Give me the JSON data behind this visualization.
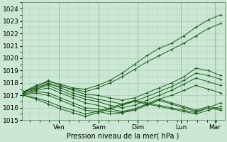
{
  "xlabel": "Pression niveau de la mer( hPa )",
  "ylim": [
    1015,
    1024.5
  ],
  "yticks": [
    1015,
    1016,
    1017,
    1018,
    1019,
    1020,
    1021,
    1022,
    1023,
    1024
  ],
  "day_labels": [
    "Ven",
    "Sam",
    "Dim",
    "Lun",
    "Mar"
  ],
  "day_positions": [
    0.18,
    0.38,
    0.58,
    0.8,
    0.97
  ],
  "bg_color": "#cce8d4",
  "grid_color": "#aaccb8",
  "line_color": "#1a5c1a",
  "lines": [
    [
      1017.3,
      1017.8,
      1018.1,
      1017.9,
      1017.6,
      1017.5,
      1017.8,
      1018.2,
      1018.8,
      1019.5,
      1020.2,
      1020.8,
      1021.2,
      1021.8,
      1022.5,
      1023.1,
      1023.5
    ],
    [
      1017.3,
      1017.6,
      1017.9,
      1017.7,
      1017.5,
      1017.3,
      1017.6,
      1018.0,
      1018.5,
      1019.1,
      1019.7,
      1020.2,
      1020.7,
      1021.2,
      1021.8,
      1022.4,
      1022.8
    ],
    [
      1017.3,
      1017.7,
      1018.2,
      1017.8,
      1017.4,
      1017.1,
      1017.0,
      1016.8,
      1016.6,
      1016.8,
      1017.2,
      1017.6,
      1018.0,
      1018.5,
      1019.2,
      1019.0,
      1018.6
    ],
    [
      1017.3,
      1017.6,
      1018.0,
      1017.6,
      1017.2,
      1016.9,
      1016.7,
      1016.5,
      1016.3,
      1016.5,
      1016.9,
      1017.3,
      1017.7,
      1018.2,
      1018.8,
      1018.6,
      1018.3
    ],
    [
      1017.2,
      1017.5,
      1017.8,
      1017.4,
      1017.0,
      1016.7,
      1016.5,
      1016.2,
      1016.0,
      1016.2,
      1016.6,
      1017.0,
      1017.4,
      1017.9,
      1018.4,
      1018.1,
      1017.8
    ],
    [
      1017.2,
      1017.4,
      1017.6,
      1017.2,
      1016.8,
      1016.4,
      1016.2,
      1015.9,
      1015.7,
      1015.9,
      1016.3,
      1016.7,
      1017.0,
      1017.4,
      1017.8,
      1017.5,
      1017.2
    ],
    [
      1017.1,
      1017.3,
      1017.2,
      1016.8,
      1016.4,
      1016.0,
      1015.9,
      1015.7,
      1015.6,
      1015.8,
      1016.2,
      1016.6,
      1016.3,
      1016.0,
      1015.7,
      1016.0,
      1015.8
    ],
    [
      1017.0,
      1017.2,
      1017.0,
      1016.6,
      1016.2,
      1015.8,
      1015.7,
      1015.5,
      1015.6,
      1015.9,
      1016.3,
      1016.7,
      1016.4,
      1016.1,
      1015.8,
      1016.1,
      1015.9
    ],
    [
      1017.0,
      1016.8,
      1016.5,
      1016.1,
      1015.8,
      1015.5,
      1015.7,
      1016.0,
      1016.3,
      1016.6,
      1016.4,
      1016.2,
      1016.0,
      1015.8,
      1015.6,
      1016.0,
      1016.4
    ],
    [
      1017.0,
      1016.7,
      1016.3,
      1015.9,
      1015.6,
      1015.3,
      1015.6,
      1015.9,
      1016.2,
      1016.5,
      1016.3,
      1016.1,
      1015.9,
      1015.7,
      1015.5,
      1015.8,
      1016.1
    ]
  ]
}
